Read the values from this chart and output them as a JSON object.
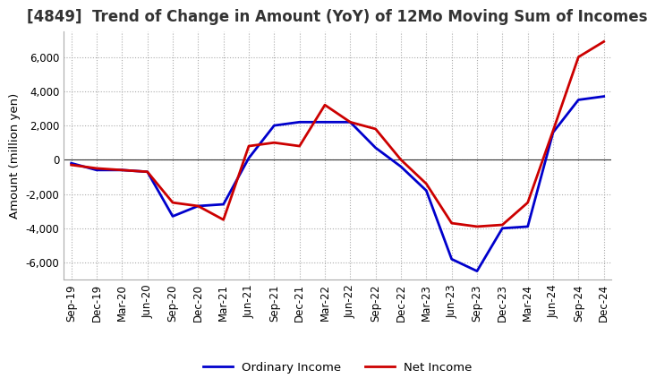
{
  "title": "[4849]  Trend of Change in Amount (YoY) of 12Mo Moving Sum of Incomes",
  "ylabel": "Amount (million yen)",
  "background_color": "#ffffff",
  "grid_color": "#aaaaaa",
  "x_labels": [
    "Sep-19",
    "Dec-19",
    "Mar-20",
    "Jun-20",
    "Sep-20",
    "Dec-20",
    "Mar-21",
    "Jun-21",
    "Sep-21",
    "Dec-21",
    "Mar-22",
    "Jun-22",
    "Sep-22",
    "Dec-22",
    "Mar-23",
    "Jun-23",
    "Sep-23",
    "Dec-23",
    "Mar-24",
    "Jun-24",
    "Sep-24",
    "Dec-24"
  ],
  "ordinary_income": [
    -200,
    -600,
    -600,
    -700,
    -3300,
    -2700,
    -2600,
    100,
    2000,
    2200,
    2200,
    2200,
    700,
    -400,
    -1800,
    -5800,
    -6500,
    -4000,
    -3900,
    1600,
    3500,
    3700
  ],
  "net_income": [
    -300,
    -500,
    -600,
    -700,
    -2500,
    -2700,
    -3500,
    800,
    1000,
    800,
    3200,
    2200,
    1800,
    0,
    -1400,
    -3700,
    -3900,
    -3800,
    -2500,
    1700,
    6000,
    6900
  ],
  "ordinary_income_color": "#0000cc",
  "net_income_color": "#cc0000",
  "line_width": 2.0,
  "ylim": [
    -7000,
    7500
  ],
  "yticks": [
    -6000,
    -4000,
    -2000,
    0,
    2000,
    4000,
    6000
  ],
  "title_fontsize": 12,
  "axis_fontsize": 9.5,
  "tick_fontsize": 8.5,
  "legend_fontsize": 9.5
}
